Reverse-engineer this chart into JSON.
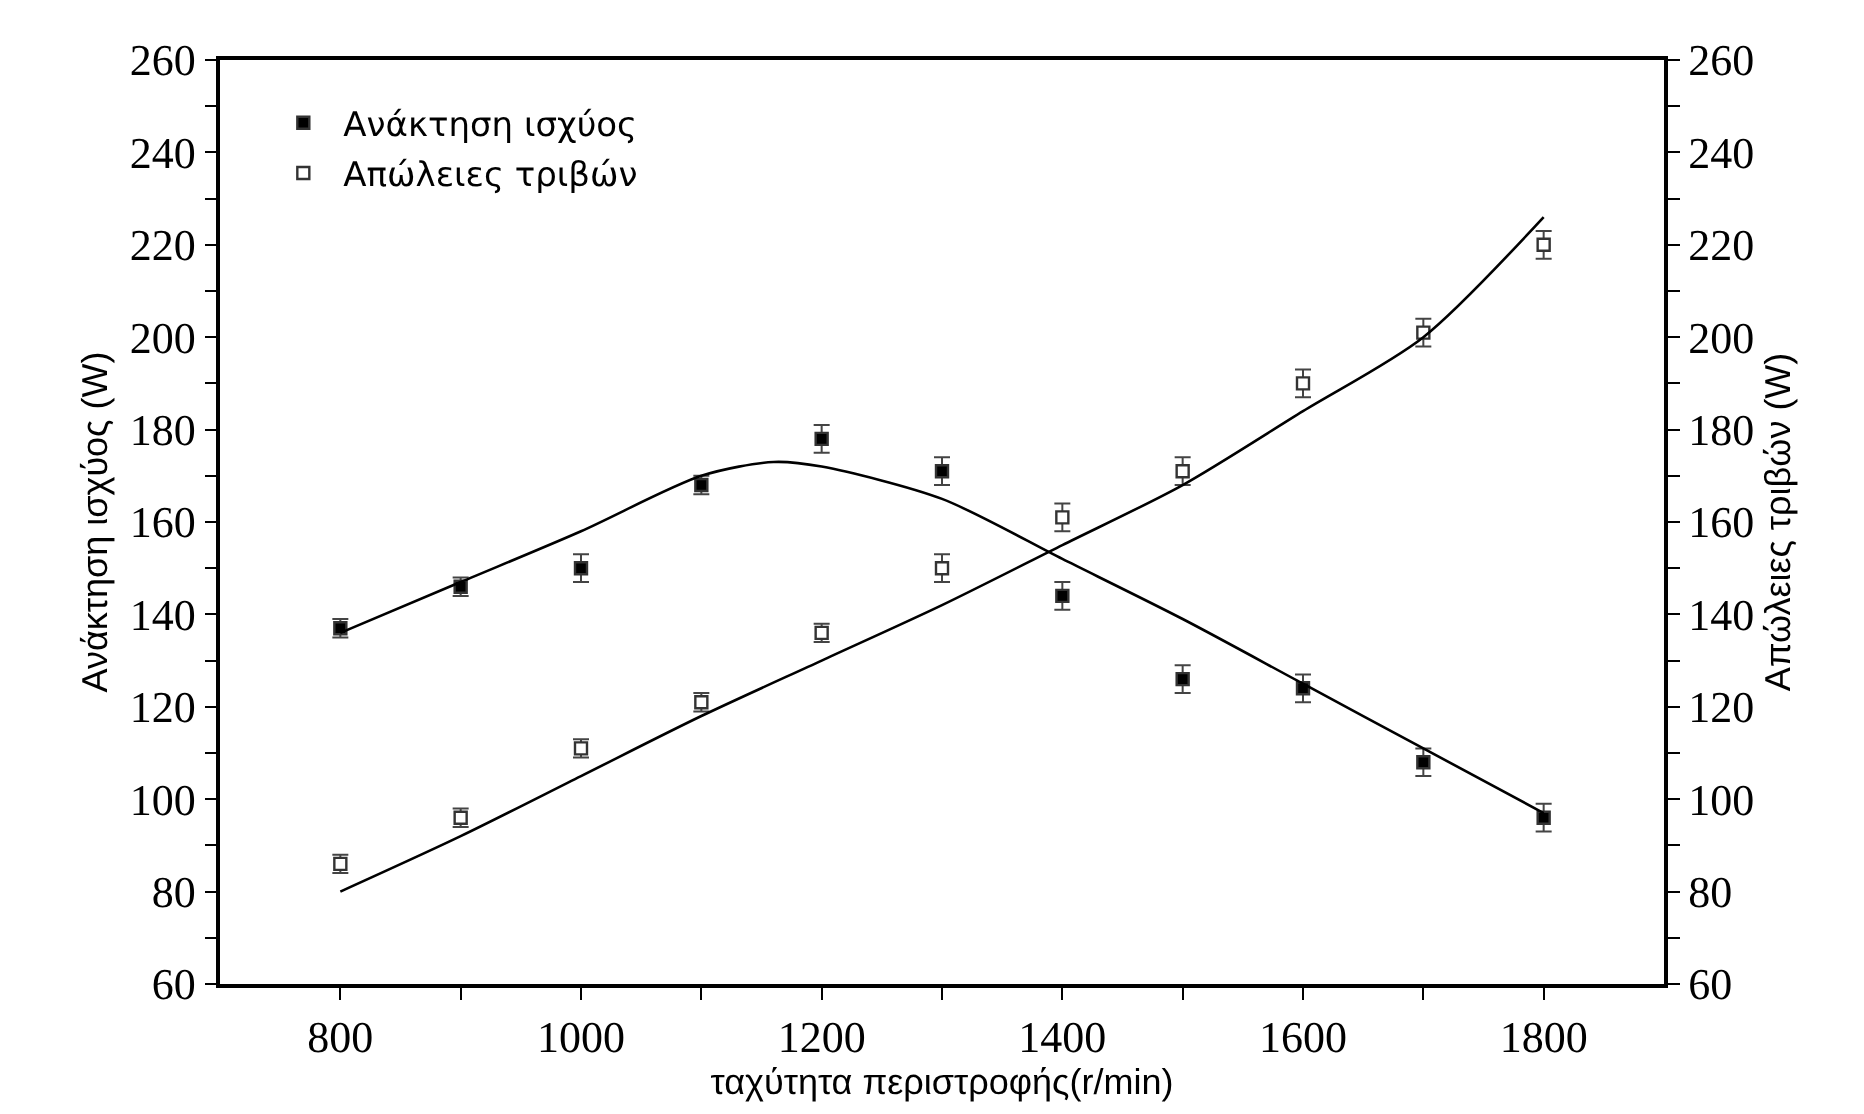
{
  "chart_data": {
    "type": "scatter",
    "xlabel": "ταχύτητα περιστροφής(r/min)",
    "ylabel": "Ανάκτηση ισχύος (W)",
    "y2label": "Απώλειες τριβών (W)",
    "x": [
      800,
      900,
      1000,
      1100,
      1200,
      1300,
      1400,
      1500,
      1600,
      1700,
      1800
    ],
    "series": [
      {
        "name": "Ανάκτηση ισχύος",
        "color": "#000000",
        "marker": "square",
        "values": [
          137,
          146,
          150,
          168,
          178,
          171,
          144,
          126,
          124,
          108,
          96
        ],
        "errors": [
          2,
          2,
          3,
          2,
          3,
          3,
          3,
          3,
          3,
          3,
          3
        ]
      },
      {
        "name": "Απώλειες τριβών",
        "color": "#ffffff",
        "marker": "square",
        "axis": "y2",
        "values": [
          86,
          96,
          111,
          121,
          136,
          150,
          161,
          171,
          190,
          201,
          220
        ],
        "errors": [
          2,
          2,
          2,
          2,
          2,
          3,
          3,
          3,
          3,
          3,
          3
        ]
      },
      {
        "type": "line",
        "color": "#000000",
        "line_style": "solid",
        "marker": "none",
        "x": [
          800,
          900,
          1000,
          1100,
          1160,
          1200,
          1300,
          1400,
          1500,
          1600,
          1700,
          1800
        ],
        "values": [
          136,
          147,
          158,
          170,
          173,
          172,
          165,
          152,
          139,
          125,
          111,
          97
        ]
      },
      {
        "type": "line",
        "color": "#000000",
        "line_style": "solid",
        "marker": "none",
        "axis": "y2",
        "x": [
          800,
          900,
          1000,
          1100,
          1200,
          1300,
          1400,
          1500,
          1600,
          1700,
          1800
        ],
        "values": [
          80,
          92,
          105,
          118,
          130,
          142,
          155,
          168,
          184,
          200,
          226
        ]
      }
    ],
    "xlim": [
      700,
      1900
    ],
    "xticks": [
      800,
      {
        "value": 900,
        "label": null
      },
      1000,
      {
        "value": 1100,
        "label": null
      },
      1200,
      {
        "value": 1300,
        "label": null
      },
      1400,
      {
        "value": 1500,
        "label": null
      },
      1600,
      {
        "value": 1700,
        "label": null
      },
      1800
    ],
    "ylim": [
      60,
      260
    ],
    "yticks": [
      60,
      {
        "value": 70,
        "label": null
      },
      80,
      {
        "value": 90,
        "label": null
      },
      100,
      {
        "value": 110,
        "label": null
      },
      120,
      {
        "value": 130,
        "label": null
      },
      140,
      {
        "value": 150,
        "label": null
      },
      160,
      {
        "value": 170,
        "label": null
      },
      180,
      {
        "value": 190,
        "label": null
      },
      200,
      {
        "value": 210,
        "label": null
      },
      220,
      {
        "value": 230,
        "label": null
      },
      240,
      {
        "value": 250,
        "label": null
      },
      260
    ],
    "y2lim": [
      60,
      260
    ],
    "y2ticks": [
      60,
      {
        "value": 70,
        "label": null
      },
      80,
      {
        "value": 90,
        "label": null
      },
      100,
      {
        "value": 110,
        "label": null
      },
      120,
      {
        "value": 130,
        "label": null
      },
      140,
      {
        "value": 150,
        "label": null
      },
      160,
      {
        "value": 170,
        "label": null
      },
      180,
      {
        "value": 190,
        "label": null
      },
      200,
      {
        "value": 210,
        "label": null
      },
      220,
      {
        "value": 230,
        "label": null
      },
      240,
      {
        "value": 250,
        "label": null
      },
      260
    ],
    "legend": "top left"
  }
}
